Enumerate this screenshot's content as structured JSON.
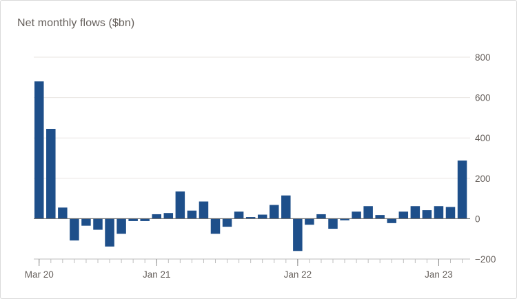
{
  "chart_data": {
    "type": "bar",
    "title": "Net monthly flows ($bn)",
    "xlabel": "",
    "ylabel": "",
    "ylim": [
      -200,
      800
    ],
    "yticks": [
      800,
      600,
      400,
      200,
      0,
      -200
    ],
    "ytick_labels": [
      "800",
      "600",
      "400",
      "200",
      "0",
      "−200"
    ],
    "y_axis_position": "right",
    "grid": true,
    "categories": [
      "2020-03",
      "2020-04",
      "2020-05",
      "2020-06",
      "2020-07",
      "2020-08",
      "2020-09",
      "2020-10",
      "2020-11",
      "2020-12",
      "2021-01",
      "2021-02",
      "2021-03",
      "2021-04",
      "2021-05",
      "2021-06",
      "2021-07",
      "2021-08",
      "2021-09",
      "2021-10",
      "2021-11",
      "2021-12",
      "2022-01",
      "2022-02",
      "2022-03",
      "2022-04",
      "2022-05",
      "2022-06",
      "2022-07",
      "2022-08",
      "2022-09",
      "2022-10",
      "2022-11",
      "2022-12",
      "2023-01",
      "2023-02",
      "2023-03"
    ],
    "values": [
      680,
      445,
      55,
      -108,
      -35,
      -55,
      -138,
      -75,
      -12,
      -12,
      22,
      28,
      135,
      40,
      85,
      -75,
      -40,
      35,
      8,
      20,
      68,
      115,
      -160,
      -30,
      22,
      -50,
      -8,
      35,
      62,
      18,
      -22,
      35,
      62,
      42,
      62,
      58,
      288
    ],
    "x_tick_labels": [
      {
        "label": "Mar 20",
        "category": "2020-03"
      },
      {
        "label": "Jan 21",
        "category": "2021-01"
      },
      {
        "label": "Jan 22",
        "category": "2022-01"
      },
      {
        "label": "Jan 23",
        "category": "2023-01"
      }
    ],
    "bar_color": "#1e4f8a"
  }
}
